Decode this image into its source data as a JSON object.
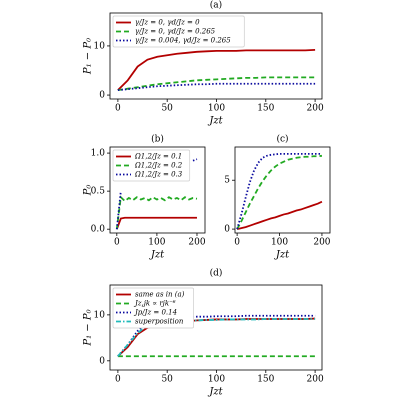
{
  "chart_data": [
    {
      "type": "line",
      "title": "(a)",
      "xlabel": "Jzt",
      "ylabel": "P₁ − P₀",
      "x": [
        0,
        10,
        20,
        30,
        40,
        50,
        60,
        70,
        80,
        90,
        100,
        110,
        120,
        130,
        140,
        150,
        160,
        170,
        180,
        190,
        200
      ],
      "xlim": [
        -8,
        207
      ],
      "ylim": [
        -0.8,
        16.7
      ],
      "xticks": [
        0,
        50,
        100,
        150,
        200
      ],
      "yticks": [
        0,
        10
      ],
      "legend": "upper left",
      "series": [
        {
          "name": "γ/Jz = 0, γd/Jz = 0",
          "color": "#b30000",
          "style": "solid",
          "values": [
            1,
            3,
            5.8,
            7.2,
            7.8,
            8.1,
            8.4,
            8.6,
            8.8,
            8.9,
            9,
            9,
            9,
            9.1,
            9.1,
            9.1,
            9.1,
            9.1,
            9.1,
            9.1,
            9.2
          ]
        },
        {
          "name": "γ/Jz = 0, γd/Jz = 0.265",
          "color": "#22aa22",
          "style": "dashed",
          "values": [
            1,
            1.3,
            1.6,
            1.9,
            2.2,
            2.4,
            2.6,
            2.8,
            3,
            3.1,
            3.2,
            3.3,
            3.4,
            3.5,
            3.5,
            3.6,
            3.6,
            3.6,
            3.6,
            3.6,
            3.6
          ]
        },
        {
          "name": "γ/Jz = 0.004, γd/Jz = 0.265",
          "color": "#0a0a9e",
          "style": "dotted",
          "values": [
            1,
            1.2,
            1.4,
            1.6,
            1.8,
            1.9,
            2,
            2.1,
            2.2,
            2.2,
            2.3,
            2.3,
            2.3,
            2.3,
            2.3,
            2.3,
            2.3,
            2.3,
            2.3,
            2.3,
            2.3
          ]
        }
      ]
    },
    {
      "type": "line",
      "title": "(b)",
      "xlabel": "Jzt",
      "ylabel": "P₀",
      "x": [
        0,
        10,
        20,
        30,
        40,
        50,
        60,
        70,
        80,
        90,
        100,
        110,
        120,
        130,
        140,
        150,
        160,
        170,
        180,
        190,
        200
      ],
      "xlim": [
        -17,
        220
      ],
      "ylim": [
        -0.05,
        1.08
      ],
      "xticks": [
        0,
        100,
        200
      ],
      "yticks": [
        {
          "value": 0,
          "label": "0.0"
        },
        {
          "value": 0.5,
          "label": "0.5"
        },
        {
          "value": 1,
          "label": "1.0"
        }
      ],
      "legend": "upper left",
      "series": [
        {
          "name": "Ω1,2/Jz = 0.1",
          "color": "#b30000",
          "style": "solid",
          "values": [
            0,
            0.14,
            0.15,
            0.15,
            0.15,
            0.15,
            0.15,
            0.15,
            0.15,
            0.15,
            0.15,
            0.15,
            0.15,
            0.15,
            0.15,
            0.15,
            0.15,
            0.15,
            0.15,
            0.15,
            0.15
          ]
        },
        {
          "name": "Ω1,2/Jz = 0.2",
          "color": "#22aa22",
          "style": "dashed",
          "values": [
            0,
            0.42,
            0.37,
            0.41,
            0.38,
            0.42,
            0.39,
            0.41,
            0.38,
            0.42,
            0.39,
            0.41,
            0.38,
            0.42,
            0.39,
            0.41,
            0.38,
            0.42,
            0.39,
            0.41,
            0.4
          ]
        },
        {
          "name": "Ω1,2/Jz = 0.3",
          "color": "#0a0a9e",
          "style": "dotted",
          "values": [
            0,
            0.5,
            null,
            null,
            null,
            null,
            null,
            null,
            null,
            null,
            null,
            null,
            null,
            null,
            null,
            null,
            null,
            null,
            null,
            0.9,
            0.92
          ]
        }
      ]
    },
    {
      "type": "line",
      "title": "(c)",
      "xlabel": "Jzt",
      "x": [
        0,
        10,
        20,
        30,
        40,
        50,
        60,
        70,
        80,
        90,
        100,
        110,
        120,
        130,
        140,
        150,
        160,
        170,
        180,
        190,
        200
      ],
      "xlim": [
        -5,
        219
      ],
      "ylim": [
        -0.4,
        8.4
      ],
      "xticks": [
        0,
        100,
        200
      ],
      "yticks": [
        0,
        5
      ],
      "series": [
        {
          "color": "#b30000",
          "style": "solid",
          "values": [
            0,
            0.1,
            0.2,
            0.35,
            0.5,
            0.65,
            0.8,
            0.95,
            1.1,
            1.2,
            1.35,
            1.5,
            1.6,
            1.75,
            1.9,
            2,
            2.15,
            2.3,
            2.45,
            2.6,
            2.8
          ]
        },
        {
          "color": "#22aa22",
          "style": "dashed",
          "values": [
            0,
            0.8,
            1.7,
            2.6,
            3.4,
            4.2,
            4.9,
            5.5,
            6,
            6.4,
            6.7,
            6.9,
            7.1,
            7.2,
            7.3,
            7.35,
            7.4,
            7.4,
            7.45,
            7.45,
            7.5
          ]
        },
        {
          "color": "#0a0a9e",
          "style": "dotted",
          "values": [
            0,
            1.5,
            3.2,
            4.8,
            6,
            6.8,
            7.3,
            7.5,
            7.6,
            7.65,
            7.7,
            7.7,
            7.7,
            7.7,
            7.7,
            7.7,
            7.7,
            7.7,
            7.7,
            7.7,
            7.7
          ]
        }
      ]
    },
    {
      "type": "line",
      "title": "(d)",
      "xlabel": "Jzt",
      "ylabel": "P₁ − P₀",
      "x": [
        0,
        10,
        20,
        30,
        40,
        50,
        60,
        70,
        80,
        90,
        100,
        110,
        120,
        130,
        140,
        150,
        160,
        170,
        180,
        190,
        200
      ],
      "xlim": [
        -8,
        207
      ],
      "ylim": [
        -2,
        16.5
      ],
      "xticks": [
        0,
        50,
        100,
        150,
        200
      ],
      "yticks": [
        0,
        10
      ],
      "legend": "upper left",
      "series": [
        {
          "name": "same as in (a)",
          "color": "#b30000",
          "style": "solid",
          "values": [
            1,
            3,
            5.8,
            7.2,
            7.8,
            8.1,
            8.4,
            8.6,
            8.8,
            8.9,
            9,
            9,
            9,
            9.1,
            9.1,
            9.1,
            9.1,
            9.1,
            9.1,
            9.1,
            9.2
          ]
        },
        {
          "name": "Jz,jk ∝ rjk⁻⁶",
          "color": "#22aa22",
          "style": "dashed",
          "values": [
            1,
            1,
            1,
            1,
            1,
            1,
            1,
            1,
            1,
            1,
            1,
            1,
            1,
            1,
            1,
            1,
            1,
            1,
            1,
            1,
            1
          ]
        },
        {
          "name": "Jp/Jz = 0.14",
          "color": "#0a0a9e",
          "style": "dotted",
          "values": [
            1,
            3.5,
            6.5,
            8.5,
            9,
            9.2,
            9.3,
            9.5,
            9.6,
            9.6,
            9.7,
            9.7,
            9.7,
            9.8,
            9.8,
            9.8,
            9.8,
            9.8,
            9.8,
            9.8,
            9.8
          ]
        },
        {
          "name": "superposition",
          "color": "#22bbbb",
          "style": "dashdot",
          "values": [
            1,
            3.5,
            6,
            7.8,
            8.3,
            8.5,
            8.6,
            8.7,
            8.8,
            8.9,
            8.9,
            9,
            9,
            9,
            9,
            9.1,
            9.1,
            9.1,
            9.1,
            9.1,
            9.1
          ]
        }
      ]
    }
  ]
}
